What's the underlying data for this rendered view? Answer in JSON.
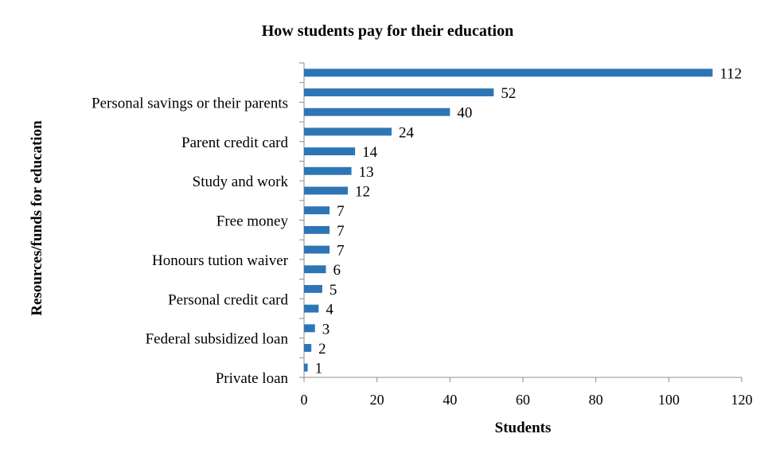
{
  "chart_data": {
    "type": "bar",
    "orientation": "horizontal",
    "title": "How students pay for their education",
    "xlabel": "Students",
    "ylabel": "Resources/funds for education",
    "xlim": [
      0,
      120
    ],
    "x_ticks": [
      0,
      20,
      40,
      60,
      80,
      100,
      120
    ],
    "grid": false,
    "legend": "none",
    "bar_color": "#2e75b6",
    "categories": [
      "",
      "Personal savings or their parents",
      "",
      "Parent credit card",
      "",
      "Study and work",
      "",
      "Free money",
      "",
      "Honours tution waiver",
      "",
      "Personal credit card",
      "",
      "Federal subsidized loan",
      "",
      "Private loan"
    ],
    "values": [
      112,
      52,
      40,
      24,
      14,
      13,
      12,
      7,
      7,
      7,
      6,
      5,
      4,
      3,
      2,
      1
    ]
  }
}
